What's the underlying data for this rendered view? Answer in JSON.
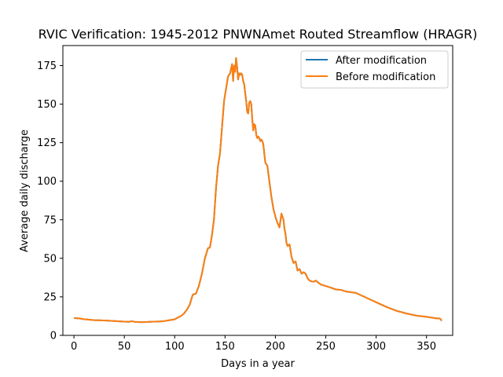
{
  "chart_data": {
    "type": "line",
    "title": "RVIC Verification: 1945-2012 PNWNAmet Routed Streamflow (HRAGR)",
    "xlabel": "Days in a year",
    "ylabel": "Average daily discharge",
    "xlim": [
      -11,
      376
    ],
    "ylim": [
      0,
      188
    ],
    "xticks": [
      0,
      50,
      100,
      150,
      200,
      250,
      300,
      350
    ],
    "yticks": [
      0,
      25,
      50,
      75,
      100,
      125,
      150,
      175
    ],
    "grid": false,
    "legend_position": "upper right",
    "x": [
      0,
      5,
      10,
      15,
      20,
      25,
      30,
      35,
      40,
      45,
      50,
      55,
      57,
      60,
      65,
      70,
      75,
      80,
      85,
      90,
      95,
      100,
      103,
      106,
      109,
      112,
      115,
      118,
      121,
      124,
      127,
      130,
      133,
      135,
      137,
      139,
      141,
      143,
      145,
      147,
      149,
      151,
      153,
      155,
      157,
      158,
      159,
      160,
      161,
      162,
      163,
      164,
      165,
      166,
      167,
      168,
      169,
      170,
      171,
      172,
      173,
      174,
      175,
      176,
      177,
      178,
      179,
      180,
      181,
      182,
      183,
      184,
      185,
      186,
      187,
      188,
      189,
      190,
      192,
      194,
      196,
      198,
      200,
      202,
      204,
      206,
      208,
      209,
      210,
      211,
      212,
      214,
      216,
      218,
      220,
      222,
      224,
      226,
      228,
      230,
      232,
      234,
      236,
      238,
      240,
      245,
      250,
      255,
      260,
      265,
      270,
      275,
      280,
      285,
      290,
      295,
      300,
      310,
      320,
      330,
      340,
      350,
      355,
      360,
      363,
      364,
      365
    ],
    "series": [
      {
        "name": "After modification",
        "color": "#1f77b4",
        "values": [
          11.2,
          11.0,
          10.5,
          10.2,
          9.9,
          9.8,
          9.7,
          9.5,
          9.3,
          9.1,
          8.9,
          8.8,
          9.2,
          8.8,
          8.6,
          8.6,
          8.8,
          8.9,
          9.0,
          9.3,
          9.9,
          10.4,
          11.5,
          12.5,
          14.0,
          16.5,
          20.0,
          26.5,
          27.0,
          32.0,
          40.0,
          50.0,
          56.5,
          57.0,
          65.0,
          75.0,
          95.0,
          110.0,
          118.0,
          135.0,
          152.0,
          160.0,
          168.0,
          170.0,
          176.0,
          165.0,
          175.0,
          171.0,
          180.0,
          174.0,
          166.0,
          170.0,
          169.0,
          170.0,
          169.0,
          165.0,
          163.0,
          157.0,
          152.0,
          145.0,
          144.0,
          151.0,
          152.0,
          150.0,
          140.0,
          133.0,
          137.0,
          136.0,
          130.0,
          128.0,
          129.0,
          128.0,
          126.0,
          127.0,
          126.0,
          124.0,
          118.0,
          112.0,
          110.0,
          100.0,
          90.0,
          82.0,
          77.0,
          73.0,
          70.0,
          79.0,
          75.0,
          69.0,
          66.0,
          60.0,
          58.0,
          59.0,
          51.0,
          47.0,
          48.0,
          42.0,
          43.0,
          40.0,
          41.0,
          40.0,
          37.0,
          35.5,
          35.0,
          34.8,
          35.5,
          33.0,
          32.0,
          31.0,
          29.8,
          29.5,
          28.5,
          28.0,
          27.5,
          26.0,
          24.5,
          23.0,
          21.5,
          18.5,
          16.0,
          14.2,
          12.8,
          12.0,
          11.5,
          11.0,
          11.0,
          10.5,
          9.5
        ]
      },
      {
        "name": "Before modification",
        "color": "#ff7f0e",
        "values": [
          11.2,
          11.0,
          10.5,
          10.2,
          9.9,
          9.8,
          9.7,
          9.5,
          9.3,
          9.1,
          8.9,
          8.8,
          9.2,
          8.8,
          8.6,
          8.6,
          8.8,
          8.9,
          9.0,
          9.3,
          9.9,
          10.4,
          11.5,
          12.5,
          14.0,
          16.5,
          20.0,
          26.5,
          27.0,
          32.0,
          40.0,
          50.0,
          56.5,
          57.0,
          65.0,
          75.0,
          95.0,
          110.0,
          118.0,
          135.0,
          152.0,
          160.0,
          168.0,
          170.0,
          176.0,
          165.0,
          175.0,
          171.0,
          180.0,
          174.0,
          166.0,
          170.0,
          169.0,
          170.0,
          169.0,
          165.0,
          163.0,
          157.0,
          152.0,
          145.0,
          144.0,
          151.0,
          152.0,
          150.0,
          140.0,
          133.0,
          137.0,
          136.0,
          130.0,
          128.0,
          129.0,
          128.0,
          126.0,
          127.0,
          126.0,
          124.0,
          118.0,
          112.0,
          110.0,
          100.0,
          90.0,
          82.0,
          77.0,
          73.0,
          70.0,
          79.0,
          75.0,
          69.0,
          66.0,
          60.0,
          58.0,
          59.0,
          51.0,
          47.0,
          48.0,
          42.0,
          43.0,
          40.0,
          41.0,
          40.0,
          37.0,
          35.5,
          35.0,
          34.8,
          35.5,
          33.0,
          32.0,
          31.0,
          29.8,
          29.5,
          28.5,
          28.0,
          27.5,
          26.0,
          24.5,
          23.0,
          21.5,
          18.5,
          16.0,
          14.2,
          12.8,
          12.0,
          11.5,
          11.0,
          11.0,
          10.5,
          9.5
        ]
      }
    ]
  }
}
